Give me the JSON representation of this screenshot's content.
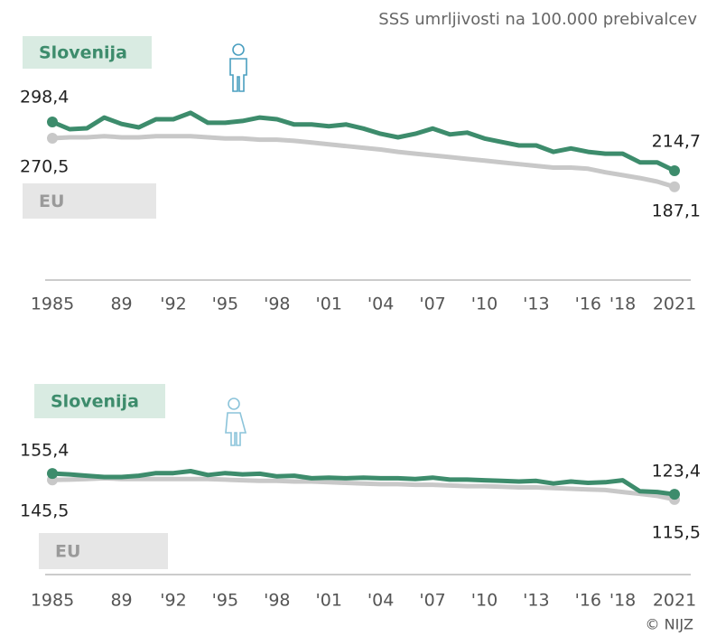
{
  "subtitle": "SSS umrljivosti na 100.000 prebivalcev",
  "credit": "© NIJZ",
  "chart_data": [
    {
      "type": "line",
      "x": [
        1985,
        1986,
        1987,
        1988,
        1989,
        1990,
        1991,
        1992,
        1993,
        1994,
        1995,
        1996,
        1997,
        1998,
        1999,
        2000,
        2001,
        2002,
        2003,
        2004,
        2005,
        2006,
        2007,
        2008,
        2009,
        2010,
        2011,
        2012,
        2013,
        2014,
        2015,
        2016,
        2017,
        2018,
        2019,
        2020,
        2021
      ],
      "xlim": [
        1985,
        2021
      ],
      "xticks": [
        1985,
        {
          "value": 1989,
          "label": "89"
        },
        {
          "value": 1992,
          "label": "'92"
        },
        {
          "value": 1995,
          "label": "'95"
        },
        {
          "value": 1998,
          "label": "'98"
        },
        {
          "value": 2001,
          "label": "'01"
        },
        {
          "value": 2004,
          "label": "'04"
        },
        {
          "value": 2007,
          "label": "'07"
        },
        {
          "value": 2010,
          "label": "'10"
        },
        {
          "value": 2013,
          "label": "'13"
        },
        {
          "value": 2016,
          "label": "'16"
        },
        {
          "value": 2018,
          "label": "'18"
        },
        2021
      ],
      "ylim": [
        27,
        350
      ],
      "series": [
        {
          "name": "Slovenija",
          "color": "#3d8c6c",
          "values": [
            298.4,
            286,
            287.5,
            306,
            295,
            289,
            303,
            303,
            314,
            297,
            297,
            300,
            306,
            303,
            294,
            294,
            291,
            294,
            287,
            278,
            272,
            278,
            287,
            277,
            280,
            270,
            264,
            258,
            258,
            247,
            253,
            247,
            244,
            244,
            229,
            229,
            214.7
          ],
          "value_labels": [
            "298,4",
            null,
            null,
            null,
            null,
            null,
            null,
            null,
            null,
            null,
            null,
            null,
            null,
            null,
            null,
            null,
            null,
            null,
            null,
            null,
            null,
            null,
            null,
            null,
            null,
            null,
            null,
            null,
            null,
            null,
            null,
            null,
            null,
            null,
            null,
            null,
            "214,7"
          ]
        },
        {
          "name": "EU",
          "color": "#c8c8c8",
          "values": [
            270.5,
            272,
            272,
            274,
            272,
            272,
            274,
            274,
            274,
            272,
            270,
            270,
            268,
            268,
            266,
            263,
            260,
            257,
            254,
            251,
            247,
            244,
            241,
            238,
            235,
            232,
            229,
            226,
            223,
            220,
            220,
            218,
            212,
            207,
            202,
            196,
            187.1
          ],
          "value_labels": [
            "270,5",
            null,
            null,
            null,
            null,
            null,
            null,
            null,
            null,
            null,
            null,
            null,
            null,
            null,
            null,
            null,
            null,
            null,
            null,
            null,
            null,
            null,
            null,
            null,
            null,
            null,
            null,
            null,
            null,
            null,
            null,
            null,
            null,
            null,
            null,
            null,
            "187,1"
          ]
        }
      ]
    },
    {
      "type": "line",
      "x": [
        1985,
        1986,
        1987,
        1988,
        1989,
        1990,
        1991,
        1992,
        1993,
        1994,
        1995,
        1996,
        1997,
        1998,
        1999,
        2000,
        2001,
        2002,
        2003,
        2004,
        2005,
        2006,
        2007,
        2008,
        2009,
        2010,
        2011,
        2012,
        2013,
        2014,
        2015,
        2016,
        2017,
        2018,
        2019,
        2020,
        2021
      ],
      "xlim": [
        1985,
        2021
      ],
      "xticks": [
        1985,
        {
          "value": 1989,
          "label": "89"
        },
        {
          "value": 1992,
          "label": "'92"
        },
        {
          "value": 1995,
          "label": "'95"
        },
        {
          "value": 1998,
          "label": "'98"
        },
        {
          "value": 2001,
          "label": "'01"
        },
        {
          "value": 2004,
          "label": "'04"
        },
        {
          "value": 2007,
          "label": "'07"
        },
        {
          "value": 2010,
          "label": "'10"
        },
        {
          "value": 2013,
          "label": "'13"
        },
        {
          "value": 2016,
          "label": "'16"
        },
        {
          "value": 2018,
          "label": "'18"
        },
        2021
      ],
      "ylim": [
        0,
        220
      ],
      "series": [
        {
          "name": "Slovenija",
          "color": "#3d8c6c",
          "values": [
            155.4,
            154,
            152,
            150,
            150,
            152,
            156,
            156,
            159,
            153,
            156,
            154,
            155,
            151,
            152,
            148,
            149,
            148,
            149,
            148,
            148,
            147,
            149,
            146,
            146,
            145,
            144,
            143,
            144,
            140,
            143,
            141,
            142,
            145,
            128,
            127,
            123.4
          ],
          "value_labels": [
            "155,4",
            null,
            null,
            null,
            null,
            null,
            null,
            null,
            null,
            null,
            null,
            null,
            null,
            null,
            null,
            null,
            null,
            null,
            null,
            null,
            null,
            null,
            null,
            null,
            null,
            null,
            null,
            null,
            null,
            null,
            null,
            null,
            null,
            null,
            null,
            null,
            "123,4"
          ]
        },
        {
          "name": "EU",
          "color": "#c8c8c8",
          "values": [
            145.5,
            146,
            147,
            148,
            147,
            147,
            147,
            147,
            147,
            147,
            146,
            145,
            144,
            144,
            143,
            143,
            142,
            141,
            140,
            139,
            139,
            138,
            138,
            137,
            136,
            136,
            135,
            134,
            134,
            133,
            132,
            131,
            130,
            127,
            124,
            121,
            115.5
          ],
          "value_labels": [
            "145,5",
            null,
            null,
            null,
            null,
            null,
            null,
            null,
            null,
            null,
            null,
            null,
            null,
            null,
            null,
            null,
            null,
            null,
            null,
            null,
            null,
            null,
            null,
            null,
            null,
            null,
            null,
            null,
            null,
            null,
            null,
            null,
            null,
            null,
            null,
            null,
            "115,5"
          ]
        }
      ]
    }
  ]
}
